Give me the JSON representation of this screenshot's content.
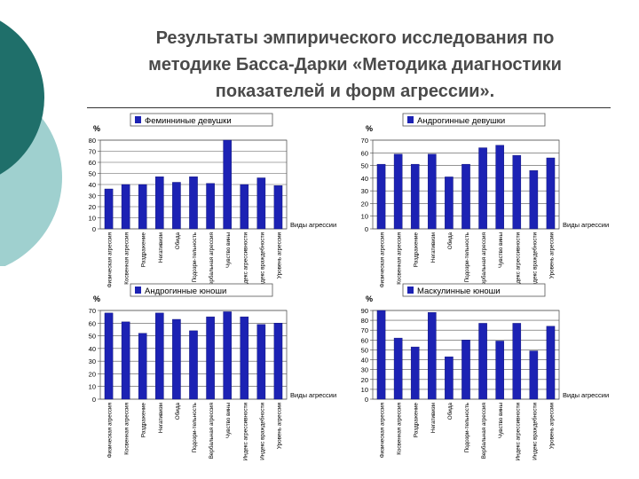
{
  "slide": {
    "title": "Результаты эмпирического исследования по\nметодике Басса-Дарки «Методика диагностики\nпоказателей и форм агрессии».",
    "colors": {
      "teal_dark": "#1f6f6a",
      "teal_light": "#9fd0cf",
      "bar": "#1c22b4",
      "text": "#4a4a4a"
    }
  },
  "chart_data": [
    {
      "type": "bar",
      "legend": "Феминниные девушки",
      "ylabel": "%",
      "xlabel": "Виды агрессии",
      "ylim": [
        0,
        80
      ],
      "yticks": [
        "0",
        "10",
        "20",
        "30",
        "40",
        "50",
        "60",
        "70",
        "80"
      ],
      "categories": [
        "Физическая агрессия",
        "Косвенная агрессия",
        "Раздражение",
        "Негативизм",
        "Обида",
        "Подозри-тельность",
        "Вербальная агрессия",
        "Чувство вины",
        "Индекс агрессивности",
        "Индекс враждебности",
        "Уровень агрессии"
      ],
      "values": [
        36,
        40,
        40,
        47,
        42,
        47,
        41,
        80,
        40,
        46,
        39
      ]
    },
    {
      "type": "bar",
      "legend": "Андрогинные девушки",
      "ylabel": "%",
      "xlabel": "Виды агрессии",
      "ylim": [
        0,
        70
      ],
      "yticks": [
        "0",
        "10",
        "20",
        "30",
        "40",
        "50",
        "60",
        "70"
      ],
      "categories": [
        "Физическая агрессия",
        "Косвенная агрессия",
        "Раздражение",
        "Негативизм",
        "Обида",
        "Подозри-тельность",
        "Вербальная агрессия",
        "Чувство вины",
        "Индекс агрессивности",
        "Индекс враждебности",
        "Уровень агрессии"
      ],
      "values": [
        51,
        59,
        51,
        59,
        41,
        51,
        64,
        66,
        58,
        46,
        56
      ]
    },
    {
      "type": "bar",
      "legend": "Андрогинные юноши",
      "ylabel": "%",
      "xlabel": "Виды агрессии",
      "ylim": [
        0,
        70
      ],
      "yticks": [
        "0",
        "10",
        "20",
        "30",
        "40",
        "50",
        "60",
        "70"
      ],
      "categories": [
        "Физическая агрессия",
        "Косвенная агрессия",
        "Раздражение",
        "Негативизм",
        "Обида",
        "Подозри-тельность",
        "Вербальная агрессия",
        "Чувство вины",
        "Индекс агрессивности",
        "Индекс враждебности",
        "Уровень агрессии"
      ],
      "values": [
        68,
        61,
        52,
        68,
        63,
        54,
        65,
        69,
        65,
        59,
        60
      ]
    },
    {
      "type": "bar",
      "legend": "Маскулинные юноши",
      "ylabel": "%",
      "xlabel": "Виды агрессии",
      "ylim": [
        0,
        90
      ],
      "yticks": [
        "0",
        "10",
        "20",
        "30",
        "40",
        "50",
        "60",
        "70",
        "80",
        "90"
      ],
      "categories": [
        "Физическая агрессия",
        "Косвенная агрессия",
        "Раздражение",
        "Негативизм",
        "Обида",
        "Подозри-тельность",
        "Вербальная агрессия",
        "Чувство вины",
        "Индекс агрессивности",
        "Индекс враждебности",
        "Уровень агрессии"
      ],
      "values": [
        90,
        62,
        53,
        88,
        43,
        60,
        77,
        59,
        77,
        49,
        74
      ]
    }
  ]
}
